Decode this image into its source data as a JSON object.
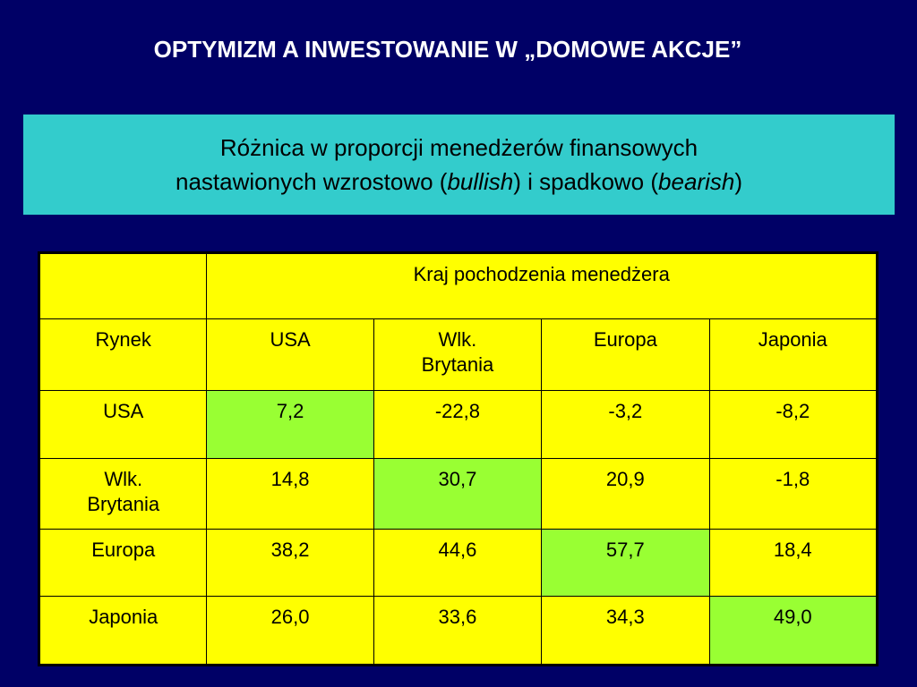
{
  "title": "OPTYMIZM A INWESTOWANIE W „DOMOWE AKCJE”",
  "subtitle": {
    "line1": "Różnica w proporcji menedżerów finansowych",
    "line2_prefix": "nastawionych wzrostowo (",
    "bullish": "bullish",
    "line2_middle": ") i spadkowo (",
    "bearish": "bearish",
    "line2_suffix": ")"
  },
  "table": {
    "group_header": "Kraj pochodzenia menedżera",
    "row_header_label": "Rynek",
    "columns": [
      {
        "line1": "USA",
        "line2": ""
      },
      {
        "line1": "Wlk.",
        "line2": "Brytania"
      },
      {
        "line1": "Europa",
        "line2": ""
      },
      {
        "line1": "Japonia",
        "line2": ""
      }
    ],
    "rows": [
      {
        "label1": "USA",
        "label2": "",
        "values": [
          "7,2",
          "-22,8",
          "-3,2",
          "-8,2"
        ]
      },
      {
        "label1": "Wlk.",
        "label2": "Brytania",
        "values": [
          "14,8",
          "30,7",
          "20,9",
          "-1,8"
        ]
      },
      {
        "label1": "Europa",
        "label2": "",
        "values": [
          "38,2",
          "44,6",
          "57,7",
          "18,4"
        ]
      },
      {
        "label1": "Japonia",
        "label2": "",
        "values": [
          "26,0",
          "33,6",
          "34,3",
          "49,0"
        ]
      }
    ]
  },
  "colors": {
    "background": "#000066",
    "subtitle_box": "#33cccc",
    "table_cell": "#ffff00",
    "diagonal_highlight": "#99ff33"
  }
}
